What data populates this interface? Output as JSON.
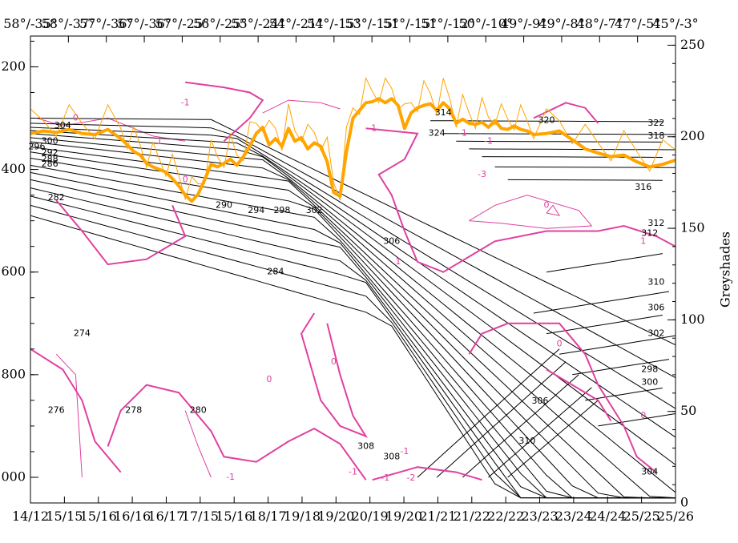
{
  "chart_data": {
    "type": "line",
    "title": "",
    "top_labels": [
      "58°/-35°",
      "58°/-37°",
      "57°/-36°",
      "57°/-36°",
      "57°/-25°",
      "56°/-25°",
      "55°/-24°",
      "54°/-21°",
      "54°/-15°",
      "53°/-15°",
      "51°/-15°",
      "51°/-12°",
      "50°/-10°",
      "49°/-9°",
      "49°/-8°",
      "48°/-7°",
      "47°/-5°",
      "45°/-3°"
    ],
    "x_tick_labels": [
      "14/12",
      "15/15",
      "15/16",
      "16/16",
      "16/17",
      "17/15",
      "15/16",
      "18/17",
      "19/18",
      "19/20",
      "20/19",
      "19/20",
      "21/21",
      "21/22",
      "22/22",
      "23/23",
      "23/24",
      "24/24",
      "25/25",
      "25/26"
    ],
    "y_left": {
      "label": "",
      "ticks": [
        200,
        400,
        600,
        800,
        1000
      ],
      "range": [
        1050,
        140
      ],
      "reversed": true
    },
    "y_right": {
      "label": "Greyshades",
      "ticks": [
        0,
        50,
        100,
        150,
        200,
        250
      ],
      "range": [
        0,
        255
      ]
    },
    "x_range": [
      0,
      100
    ],
    "black_contour_labels": [
      "304",
      "300",
      "296",
      "292",
      "288",
      "286",
      "282",
      "274",
      "276",
      "278",
      "280",
      "284",
      "290",
      "294",
      "298",
      "302",
      "306",
      "308",
      "308",
      "310",
      "312",
      "314",
      "320",
      "324",
      "322",
      "318",
      "316",
      "312",
      "310",
      "306",
      "302",
      "298",
      "300",
      "304",
      "306"
    ],
    "pink_contour_labels": [
      "0",
      "-1",
      "-1",
      "0",
      "1",
      "0",
      "-1",
      "-1",
      "-3",
      "1",
      "0",
      "0",
      "-1",
      "-2",
      "-1",
      "-1",
      "-1",
      "0",
      "1",
      "0"
    ],
    "series": [
      {
        "name": "",
        "color": "#ffa500",
        "x": [
          0,
          2,
          4,
          6,
          8,
          10,
          12,
          14,
          15,
          16,
          17,
          18,
          19,
          20,
          21,
          22,
          23,
          24,
          25,
          26,
          27,
          28,
          29,
          30,
          31,
          32,
          33,
          34,
          35,
          36,
          37,
          38,
          39,
          40,
          41,
          42,
          43,
          44,
          45,
          46,
          47,
          48,
          49,
          50,
          51,
          52,
          53,
          54,
          55,
          56,
          57,
          58,
          59,
          60,
          61,
          62,
          63,
          64,
          65,
          66,
          67,
          68,
          69,
          70,
          71,
          72,
          73,
          74,
          75,
          76,
          77,
          78,
          80,
          82,
          84,
          86,
          88,
          90,
          92,
          94,
          96,
          98,
          100
        ],
        "values": [
          330,
          325,
          328,
          322,
          330,
          332,
          322,
          340,
          352,
          365,
          372,
          388,
          395,
          400,
          405,
          418,
          432,
          450,
          462,
          448,
          420,
          390,
          395,
          388,
          380,
          392,
          375,
          355,
          330,
          318,
          352,
          340,
          355,
          320,
          345,
          338,
          360,
          348,
          355,
          385,
          445,
          452,
          365,
          300,
          285,
          270,
          268,
          262,
          270,
          262,
          275,
          320,
          290,
          280,
          275,
          272,
          285,
          270,
          282,
          310,
          302,
          310,
          312,
          308,
          318,
          305,
          320,
          322,
          315,
          322,
          325,
          332,
          330,
          325,
          342,
          360,
          368,
          375,
          372,
          385,
          395,
          390,
          382
        ]
      }
    ],
    "colors": {
      "contour_black": "#000000",
      "contour_pink": "#e040a0",
      "orange": "#ffa500"
    }
  }
}
